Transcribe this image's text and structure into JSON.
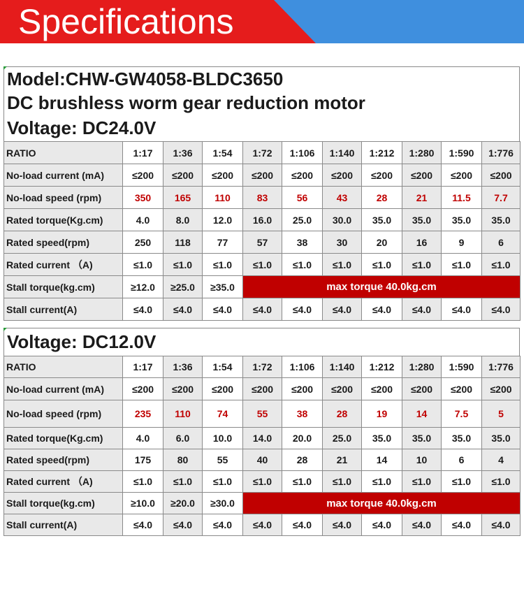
{
  "banner": {
    "title": "Specifications",
    "colors": {
      "left": "#e51c1c",
      "right": "#3f8fde"
    }
  },
  "sections": [
    {
      "lines": [
        "Model:CHW-GW4058-BLDC3650",
        "DC brushless worm gear reduction motor",
        "Voltage: DC24.0V"
      ],
      "ratio_label": "RATIO",
      "ratios": [
        "1:17",
        "1:36",
        "1:54",
        "1:72",
        "1:106",
        "1:140",
        "1:212",
        "1:280",
        "1:590",
        "1:776"
      ],
      "rows": [
        {
          "label": "No-load current (mA)",
          "values": [
            "≤200",
            "≤200",
            "≤200",
            "≤200",
            "≤200",
            "≤200",
            "≤200",
            "≤200",
            "≤200",
            "≤200"
          ]
        },
        {
          "label": "No-load speed (rpm)",
          "values": [
            "350",
            "165",
            "110",
            "83",
            "56",
            "43",
            "28",
            "21",
            "11.5",
            "7.7"
          ],
          "highlight": true
        },
        {
          "label": "Rated torque(Kg.cm)",
          "values": [
            "4.0",
            "8.0",
            "12.0",
            "16.0",
            "25.0",
            "30.0",
            "35.0",
            "35.0",
            "35.0",
            "35.0"
          ]
        },
        {
          "label": "Rated speed(rpm)",
          "values": [
            "250",
            "118",
            "77",
            "57",
            "38",
            "30",
            "20",
            "16",
            "9",
            "6"
          ]
        },
        {
          "label": "Rated current （A)",
          "values": [
            "≤1.0",
            "≤1.0",
            "≤1.0",
            "≤1.0",
            "≤1.0",
            "≤1.0",
            "≤1.0",
            "≤1.0",
            "≤1.0",
            "≤1.0"
          ]
        }
      ],
      "stall_torque": {
        "label": "Stall torque(kg.cm)",
        "values": [
          "≥12.0",
          "≥25.0",
          "≥35.0"
        ],
        "max_text": "max torque 40.0kg.cm"
      },
      "stall_current": {
        "label": "Stall current(A)",
        "values": [
          "≤4.0",
          "≤4.0",
          "≤4.0",
          "≤4.0",
          "≤4.0",
          "≤4.0",
          "≤4.0",
          "≤4.0",
          "≤4.0",
          "≤4.0"
        ]
      }
    },
    {
      "lines": [
        "Voltage: DC12.0V"
      ],
      "ratio_label": "RATIO",
      "ratios": [
        "1:17",
        "1:36",
        "1:54",
        "1:72",
        "1:106",
        "1:140",
        "1:212",
        "1:280",
        "1:590",
        "1:776"
      ],
      "rows": [
        {
          "label": "No-load current (mA)",
          "values": [
            "≤200",
            "≤200",
            "≤200",
            "≤200",
            "≤200",
            "≤200",
            "≤200",
            "≤200",
            "≤200",
            "≤200"
          ]
        },
        {
          "label": "No-load speed (rpm)",
          "values": [
            "235",
            "110",
            "74",
            "55",
            "38",
            "28",
            "19",
            "14",
            "7.5",
            "5"
          ],
          "highlight": true
        },
        {
          "label": "Rated torque(Kg.cm)",
          "values": [
            "4.0",
            "6.0",
            "10.0",
            "14.0",
            "20.0",
            "25.0",
            "35.0",
            "35.0",
            "35.0",
            "35.0"
          ]
        },
        {
          "label": "Rated speed(rpm)",
          "values": [
            "175",
            "80",
            "55",
            "40",
            "28",
            "21",
            "14",
            "10",
            "6",
            "4"
          ]
        },
        {
          "label": "Rated current （A)",
          "values": [
            "≤1.0",
            "≤1.0",
            "≤1.0",
            "≤1.0",
            "≤1.0",
            "≤1.0",
            "≤1.0",
            "≤1.0",
            "≤1.0",
            "≤1.0"
          ]
        }
      ],
      "stall_torque": {
        "label": "Stall torque(kg.cm)",
        "values": [
          "≥10.0",
          "≥20.0",
          "≥30.0"
        ],
        "max_text": "max torque 40.0kg.cm"
      },
      "stall_current": {
        "label": "Stall current(A)",
        "values": [
          "≤4.0",
          "≤4.0",
          "≤4.0",
          "≤4.0",
          "≤4.0",
          "≤4.0",
          "≤4.0",
          "≤4.0",
          "≤4.0",
          "≤4.0"
        ]
      }
    }
  ]
}
